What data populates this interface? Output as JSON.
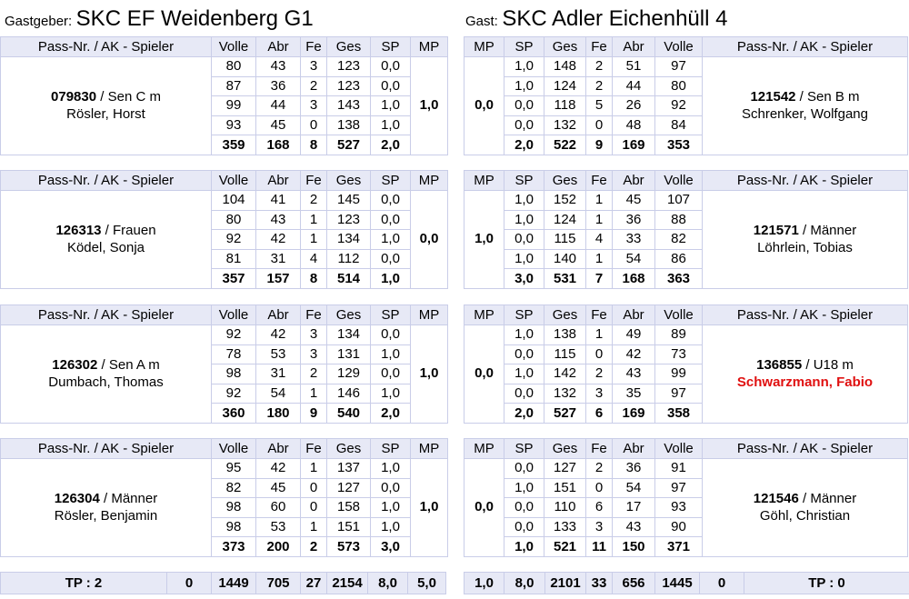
{
  "home": {
    "prefix": "Gastgeber:",
    "name": "SKC EF Weidenberg G1"
  },
  "guest": {
    "prefix": "Gast:",
    "name": "SKC Adler Eichenhüll 4"
  },
  "headers_home": [
    "Pass-Nr. / AK - Spieler",
    "Volle",
    "Abr",
    "Fe",
    "Ges",
    "SP",
    "MP"
  ],
  "headers_guest": [
    "MP",
    "SP",
    "Ges",
    "Fe",
    "Abr",
    "Volle",
    "Pass-Nr. / AK - Spieler"
  ],
  "home_players": [
    {
      "pass": "079830",
      "ak": "/ Sen C m",
      "name": "Rösler, Horst",
      "mp": "1,0",
      "rows": [
        [
          "80",
          "43",
          "3",
          "123",
          "0,0"
        ],
        [
          "87",
          "36",
          "2",
          "123",
          "0,0"
        ],
        [
          "99",
          "44",
          "3",
          "143",
          "1,0"
        ],
        [
          "93",
          "45",
          "0",
          "138",
          "1,0"
        ]
      ],
      "total": [
        "359",
        "168",
        "8",
        "527",
        "2,0"
      ]
    },
    {
      "pass": "126313",
      "ak": "/ Frauen",
      "name": "Ködel, Sonja",
      "mp": "0,0",
      "rows": [
        [
          "104",
          "41",
          "2",
          "145",
          "0,0"
        ],
        [
          "80",
          "43",
          "1",
          "123",
          "0,0"
        ],
        [
          "92",
          "42",
          "1",
          "134",
          "1,0"
        ],
        [
          "81",
          "31",
          "4",
          "112",
          "0,0"
        ]
      ],
      "total": [
        "357",
        "157",
        "8",
        "514",
        "1,0"
      ]
    },
    {
      "pass": "126302",
      "ak": "/ Sen A m",
      "name": "Dumbach, Thomas",
      "mp": "1,0",
      "rows": [
        [
          "92",
          "42",
          "3",
          "134",
          "0,0"
        ],
        [
          "78",
          "53",
          "3",
          "131",
          "1,0"
        ],
        [
          "98",
          "31",
          "2",
          "129",
          "0,0"
        ],
        [
          "92",
          "54",
          "1",
          "146",
          "1,0"
        ]
      ],
      "total": [
        "360",
        "180",
        "9",
        "540",
        "2,0"
      ]
    },
    {
      "pass": "126304",
      "ak": "/ Männer",
      "name": "Rösler, Benjamin",
      "mp": "1,0",
      "rows": [
        [
          "95",
          "42",
          "1",
          "137",
          "1,0"
        ],
        [
          "82",
          "45",
          "0",
          "127",
          "0,0"
        ],
        [
          "98",
          "60",
          "0",
          "158",
          "1,0"
        ],
        [
          "98",
          "53",
          "1",
          "151",
          "1,0"
        ]
      ],
      "total": [
        "373",
        "200",
        "2",
        "573",
        "3,0"
      ]
    }
  ],
  "guest_players": [
    {
      "pass": "121542",
      "ak": "/ Sen B m",
      "name": "Schrenker, Wolfgang",
      "mp": "0,0",
      "highlight": false,
      "rows": [
        [
          "1,0",
          "148",
          "2",
          "51",
          "97"
        ],
        [
          "1,0",
          "124",
          "2",
          "44",
          "80"
        ],
        [
          "0,0",
          "118",
          "5",
          "26",
          "92"
        ],
        [
          "0,0",
          "132",
          "0",
          "48",
          "84"
        ]
      ],
      "total": [
        "2,0",
        "522",
        "9",
        "169",
        "353"
      ]
    },
    {
      "pass": "121571",
      "ak": "/ Männer",
      "name": "Löhrlein, Tobias",
      "mp": "1,0",
      "highlight": false,
      "rows": [
        [
          "1,0",
          "152",
          "1",
          "45",
          "107"
        ],
        [
          "1,0",
          "124",
          "1",
          "36",
          "88"
        ],
        [
          "0,0",
          "115",
          "4",
          "33",
          "82"
        ],
        [
          "1,0",
          "140",
          "1",
          "54",
          "86"
        ]
      ],
      "total": [
        "3,0",
        "531",
        "7",
        "168",
        "363"
      ]
    },
    {
      "pass": "136855",
      "ak": "/ U18 m",
      "name": "Schwarzmann, Fabio",
      "mp": "0,0",
      "highlight": true,
      "rows": [
        [
          "1,0",
          "138",
          "1",
          "49",
          "89"
        ],
        [
          "0,0",
          "115",
          "0",
          "42",
          "73"
        ],
        [
          "1,0",
          "142",
          "2",
          "43",
          "99"
        ],
        [
          "0,0",
          "132",
          "3",
          "35",
          "97"
        ]
      ],
      "total": [
        "2,0",
        "527",
        "6",
        "169",
        "358"
      ]
    },
    {
      "pass": "121546",
      "ak": "/ Männer",
      "name": "Göhl, Christian",
      "mp": "0,0",
      "highlight": false,
      "rows": [
        [
          "0,0",
          "127",
          "2",
          "36",
          "91"
        ],
        [
          "1,0",
          "151",
          "0",
          "54",
          "97"
        ],
        [
          "0,0",
          "110",
          "6",
          "17",
          "93"
        ],
        [
          "0,0",
          "133",
          "3",
          "43",
          "90"
        ]
      ],
      "total": [
        "1,0",
        "521",
        "11",
        "150",
        "371"
      ]
    }
  ],
  "totals_home": {
    "tp": "TP : 2",
    "cells": [
      "0",
      "1449",
      "705",
      "27",
      "2154",
      "8,0",
      "5,0"
    ]
  },
  "totals_guest": {
    "tp": "TP : 0",
    "cells": [
      "1,0",
      "8,0",
      "2101",
      "33",
      "656",
      "1445",
      "0"
    ]
  },
  "colors": {
    "header_bg": "#e7e9f6",
    "border": "#c9cde8",
    "highlight_name": "#e01010"
  }
}
